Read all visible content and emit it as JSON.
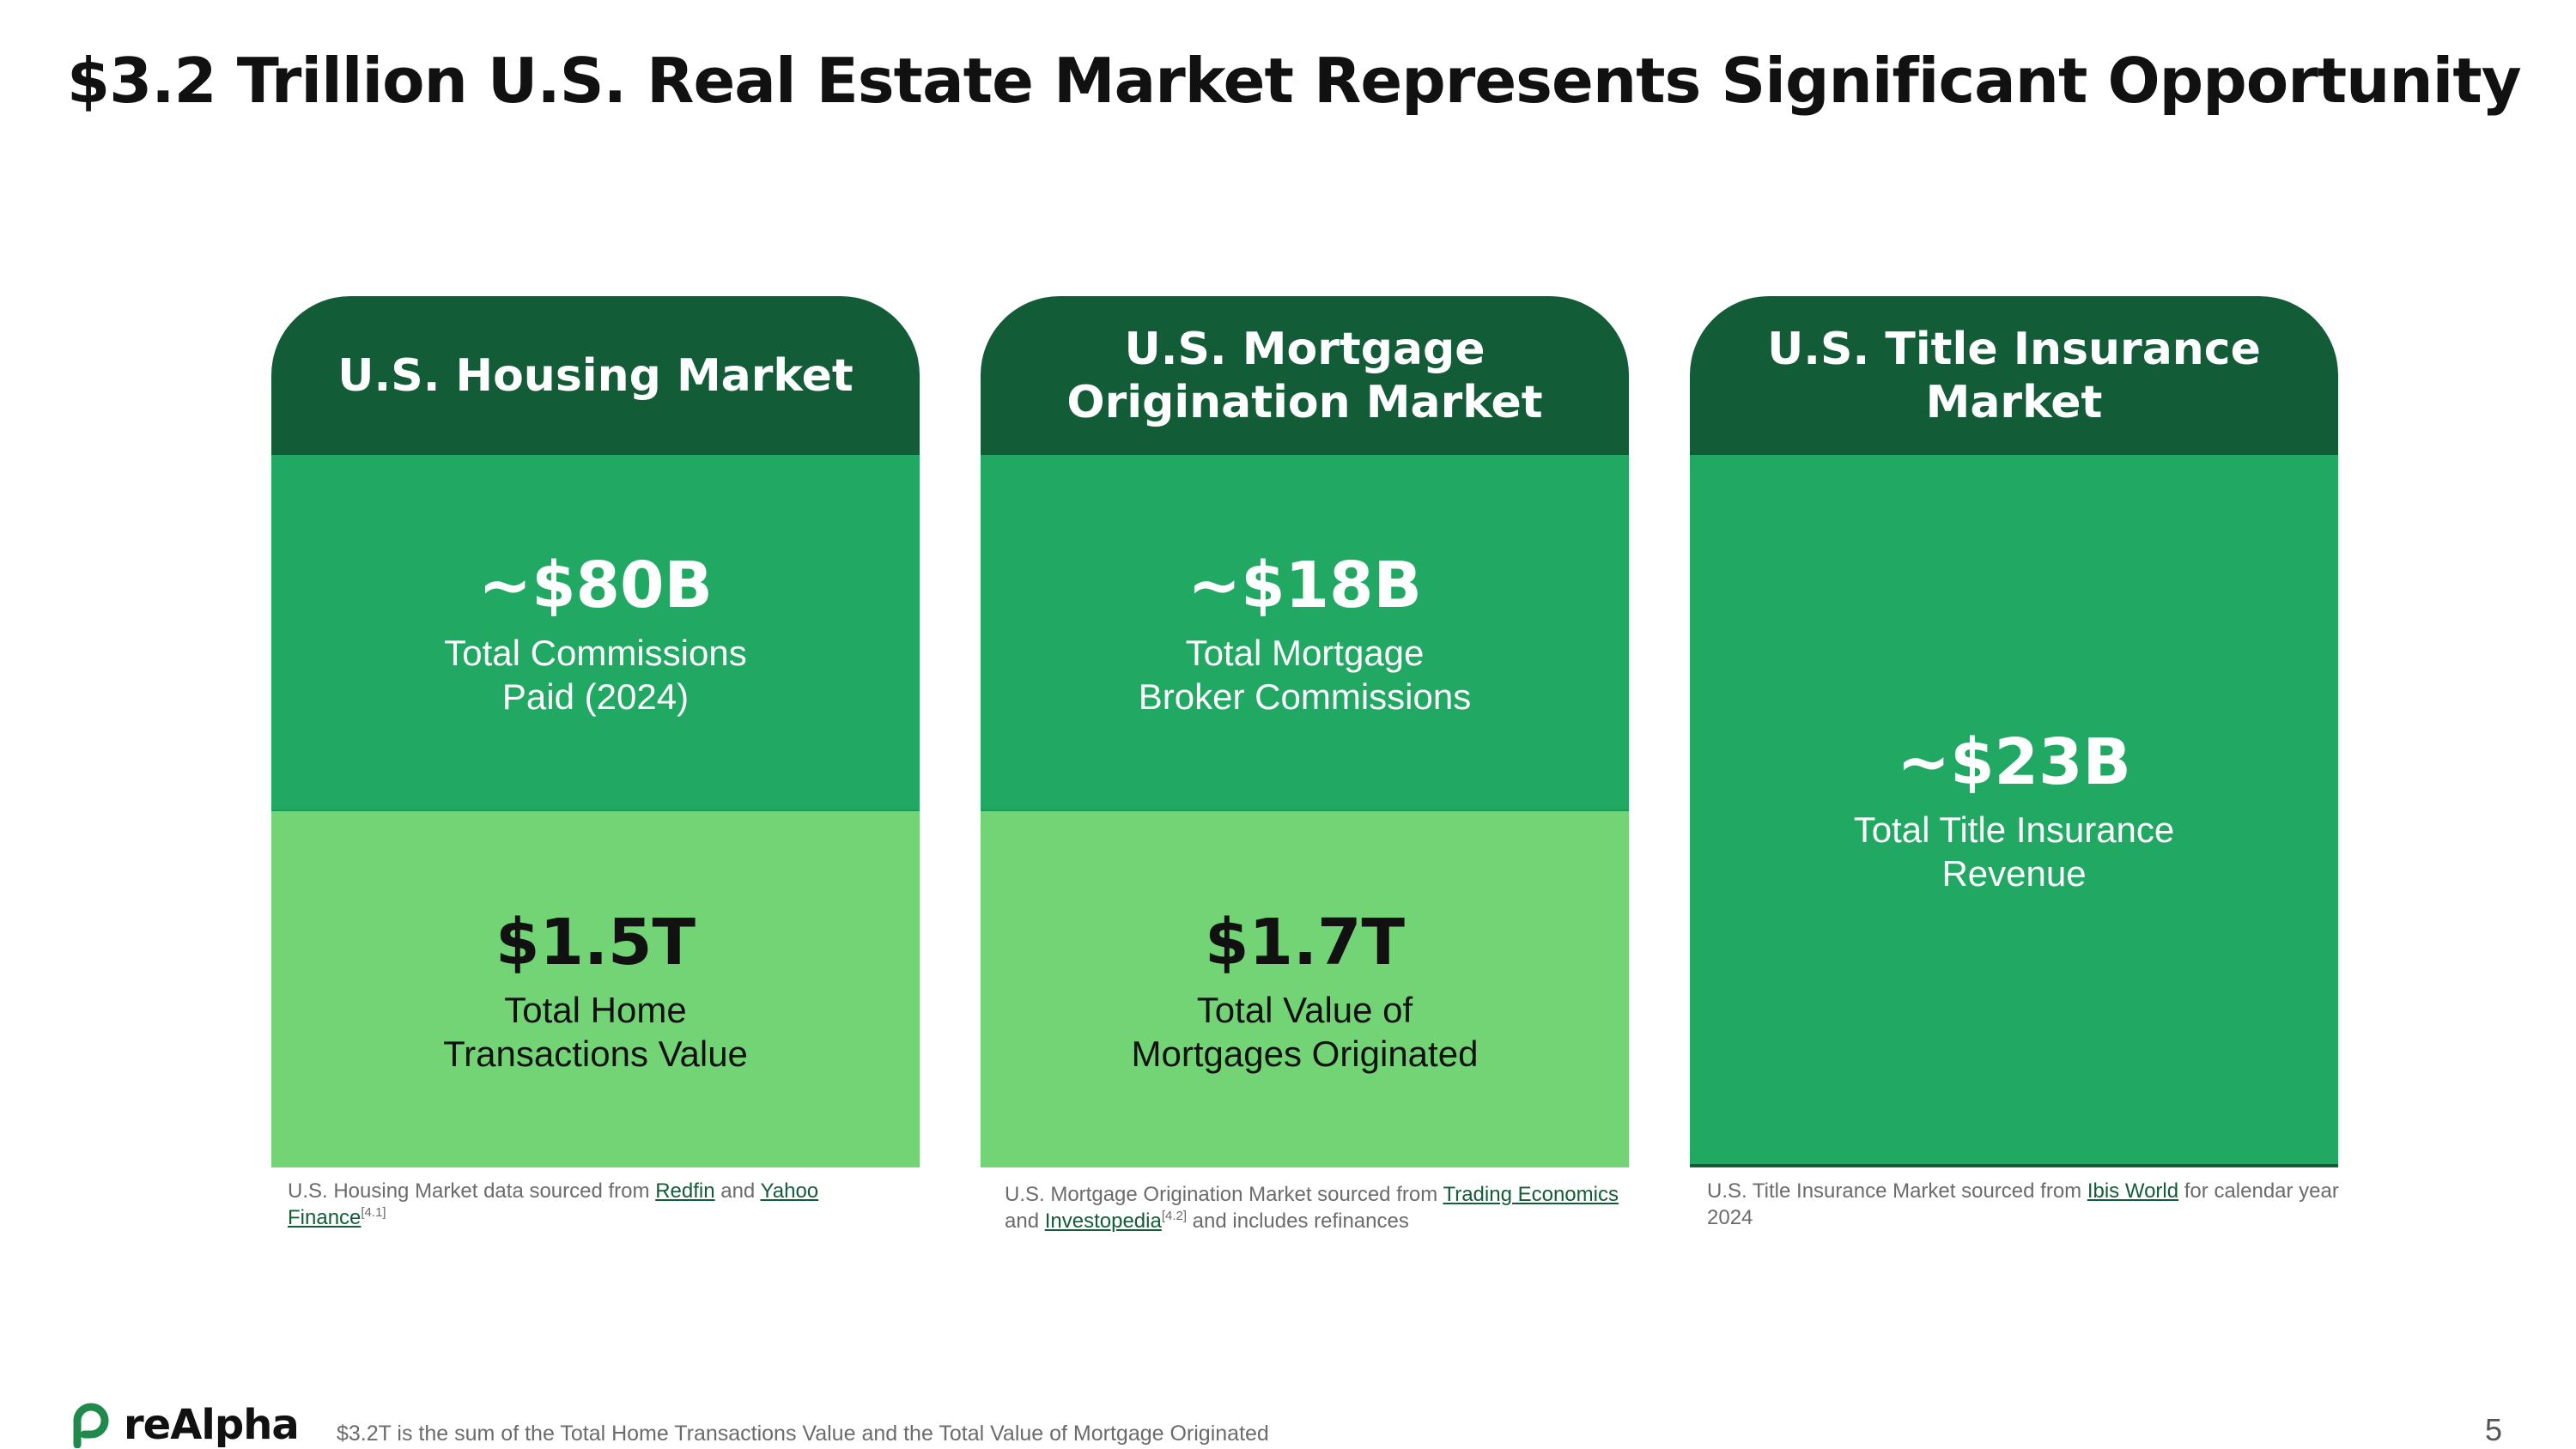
{
  "title": "$3.2 Trillion U.S. Real Estate Market Represents Significant Opportunity",
  "cards": [
    {
      "header": "U.S. Housing Market",
      "segments": [
        {
          "value": "~$80B",
          "label": "Total Commissions\nPaid (2024)"
        },
        {
          "value": "$1.5T",
          "label": "Total Home\nTransactions Value"
        }
      ],
      "note": {
        "prefix": "U.S. Housing Market data sourced from ",
        "link1": "Redfin",
        "mid": " and ",
        "link2": "Yahoo Finance",
        "sup": "[4.1]",
        "suffix": ""
      }
    },
    {
      "header": "U.S. Mortgage Origination Market",
      "segments": [
        {
          "value": "~$18B",
          "label": "Total Mortgage\nBroker Commissions"
        },
        {
          "value": "$1.7T",
          "label": "Total Value of\nMortgages Originated"
        }
      ],
      "note": {
        "prefix": "U.S. Mortgage Origination Market sourced from ",
        "link1": "Trading Economics",
        "mid": " and ",
        "link2": "Investopedia",
        "sup": "[4.2]",
        "suffix": " and includes refinances"
      }
    },
    {
      "header": "U.S. Title Insurance Market",
      "segments": [
        {
          "value": "~$23B",
          "label": "Total Title Insurance\nRevenue"
        }
      ],
      "note": {
        "prefix": "U.S. Title Insurance Market sourced from ",
        "link1": "Ibis World",
        "suffix": " for calendar year 2024"
      }
    }
  ],
  "footer": {
    "logo_text": "reAlpha",
    "footnote": "$3.2T is the sum of the Total Home Transactions Value and the Total Value of Mortgage Originated",
    "page_number": "5"
  },
  "colors": {
    "header_green": "#135c38",
    "mid_green": "#21a863",
    "light_green": "#73d476",
    "link_green": "#135c38",
    "logo_icon": "#1f8a4c"
  },
  "icons": [
    "realpha-logo-icon"
  ]
}
